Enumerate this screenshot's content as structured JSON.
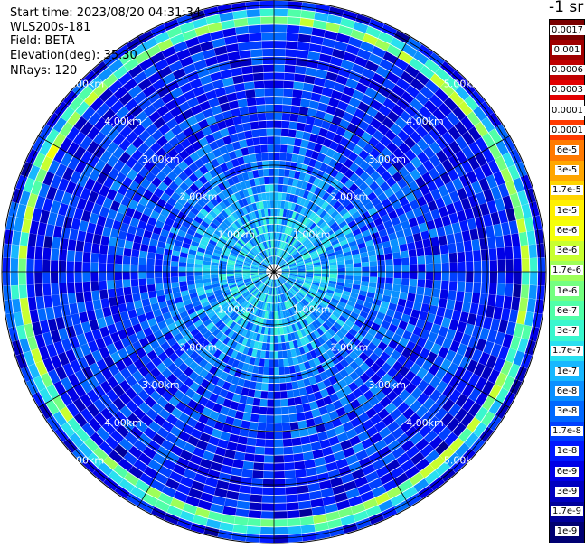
{
  "info": {
    "start_time": "Start time: 2023/08/20 04:31:34",
    "device": "WLS200s-181",
    "field": "Field: BETA",
    "elevation": "Elevation(deg): 35.30",
    "nrays": "NRays: 120"
  },
  "colorbar": {
    "unit": "-1 sr",
    "labels": [
      "0.0017",
      "0.001",
      "0.0006",
      "0.0003",
      "0.00017",
      "0.0001",
      "6e-5",
      "3e-5",
      "1.7e-5",
      "1e-5",
      "6e-6",
      "3e-6",
      "1.7e-6",
      "1e-6",
      "6e-7",
      "3e-7",
      "1.7e-7",
      "1e-7",
      "6e-8",
      "3e-8",
      "1.7e-8",
      "1e-8",
      "6e-9",
      "3e-9",
      "1.7e-9",
      "1e-9"
    ],
    "colors": [
      "#7a0000",
      "#a00000",
      "#c00000",
      "#e20000",
      "#ffffff",
      "#ff3a00",
      "#ff7a00",
      "#ffa600",
      "#ffd400",
      "#fff000",
      "#f4ff0a",
      "#c8ff30",
      "#9eff58",
      "#74ff80",
      "#50ffa8",
      "#3af7ce",
      "#29e0f0",
      "#18b8ff",
      "#0a90ff",
      "#0068ff",
      "#0040ff",
      "#0018ff",
      "#0000e6",
      "#0000c0",
      "#00009a",
      "#000072"
    ]
  },
  "chart_data": {
    "type": "heatmap",
    "projection": "polar (PPI scan)",
    "n_rays": 120,
    "range_rings_km": [
      1,
      2,
      3,
      4,
      5
    ],
    "range_labels": [
      "1.00km",
      "2.00km",
      "3.00km",
      "4.00km",
      "5.00km"
    ],
    "radial_lines_deg": [
      0,
      30,
      60,
      90,
      120,
      150,
      180,
      210,
      240,
      270,
      300,
      330
    ],
    "max_range_km": 5.1,
    "colorbar_unit": "-1 sr",
    "scale": "log",
    "value_range": [
      1e-09,
      0.0017
    ],
    "field_profile": {
      "range_km": [
        0.2,
        1.0,
        1.5,
        2.0,
        2.5,
        3.0,
        3.5,
        4.0,
        4.4,
        4.6,
        4.75,
        5.0,
        5.1
      ],
      "typical_value": [
        1e-07,
        1e-07,
        6e-08,
        3e-08,
        2e-08,
        1.7e-08,
        1.5e-08,
        1.2e-08,
        1e-08,
        1e-08,
        3e-06,
        1e-08,
        1e-08
      ]
    }
  }
}
